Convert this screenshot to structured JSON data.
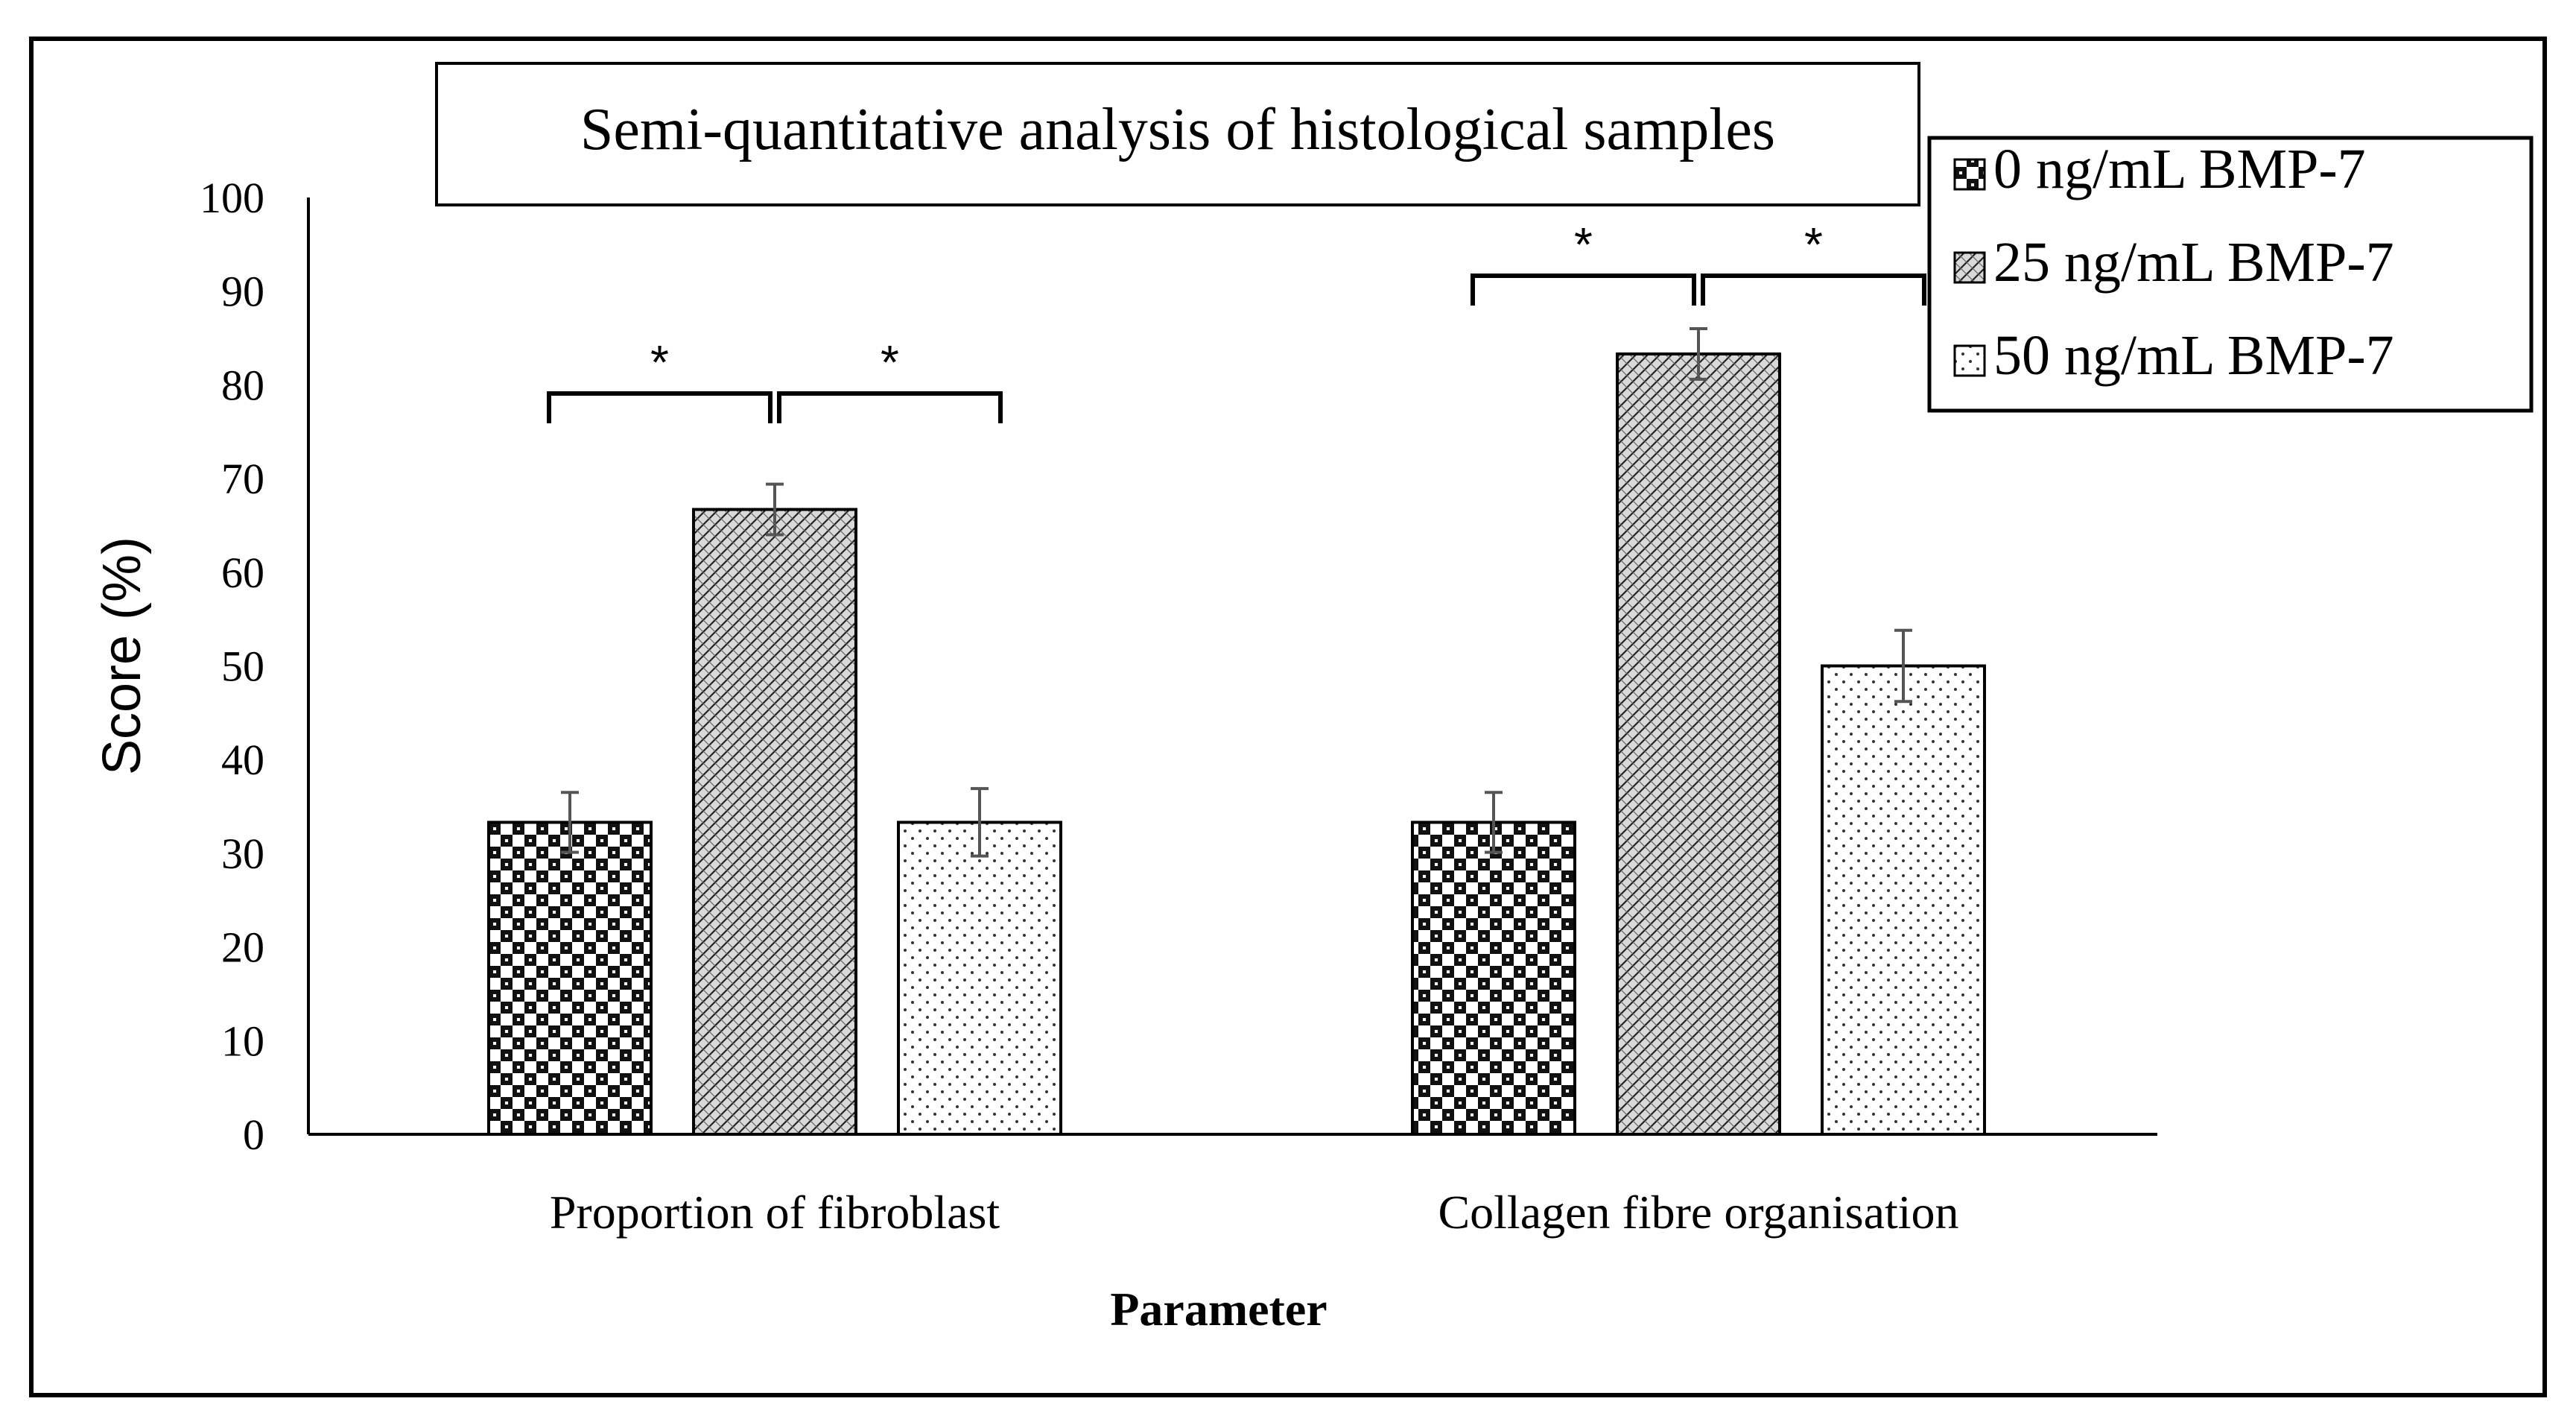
{
  "chart_data": {
    "type": "bar",
    "title": "Semi-quantitative analysis of histological samples",
    "xlabel": "Parameter",
    "ylabel": "Score (%)",
    "ylim": [
      0,
      100
    ],
    "yticks": [
      0,
      10,
      20,
      30,
      40,
      50,
      60,
      70,
      80,
      90,
      100
    ],
    "categories": [
      "Proportion of fibroblast",
      "Collagen fibre organisation"
    ],
    "series": [
      {
        "name": "0 ng/mL BMP-7",
        "values": [
          33.3,
          33.3
        ],
        "errors": [
          3.2,
          3.2
        ],
        "pattern": "checker"
      },
      {
        "name": "25 ng/mL BMP-7",
        "values": [
          66.7,
          83.3
        ],
        "errors": [
          2.7,
          2.7
        ],
        "pattern": "weave"
      },
      {
        "name": "50 ng/mL BMP-7",
        "values": [
          33.3,
          50.0
        ],
        "errors": [
          3.6,
          3.8
        ],
        "pattern": "dots"
      }
    ],
    "significance": [
      {
        "category": 0,
        "from_series": 0,
        "to_series": 1,
        "label": "*"
      },
      {
        "category": 0,
        "from_series": 1,
        "to_series": 2,
        "label": "*"
      },
      {
        "category": 1,
        "from_series": 0,
        "to_series": 1,
        "label": "*"
      },
      {
        "category": 1,
        "from_series": 1,
        "to_series": 2,
        "label": "*"
      }
    ],
    "grid": false,
    "legend": "top-right"
  }
}
